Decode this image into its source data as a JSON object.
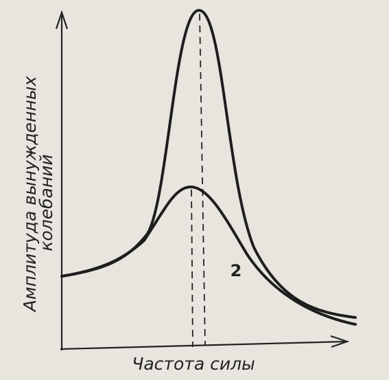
{
  "axes": {
    "y_label": [
      "Амплитуда вынужденных",
      "колебаний"
    ],
    "x_label": "Частота силы"
  },
  "curves": [
    {
      "label": "2"
    }
  ]
}
